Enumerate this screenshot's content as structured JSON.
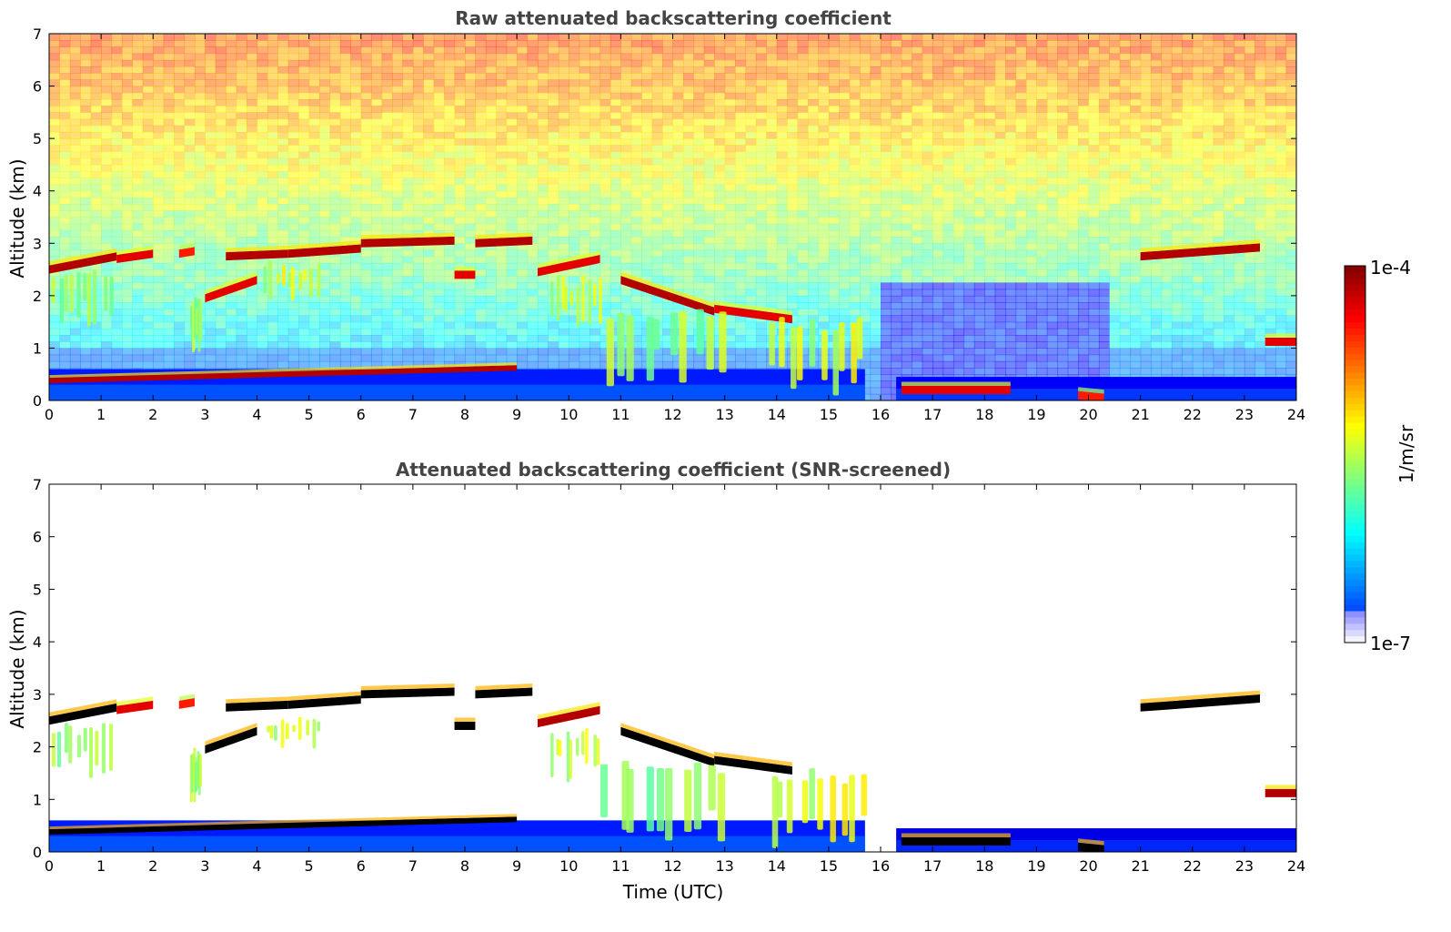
{
  "chart_data": [
    {
      "type": "heatmap",
      "title": "Raw attenuated backscattering coefficient",
      "xlabel": "",
      "ylabel": "Altitude (km)",
      "xlim": [
        0,
        24
      ],
      "ylim": [
        0,
        7
      ],
      "x_ticks": [
        0,
        1,
        2,
        3,
        4,
        5,
        6,
        7,
        8,
        9,
        10,
        11,
        12,
        13,
        14,
        15,
        16,
        17,
        18,
        19,
        20,
        21,
        22,
        23,
        24
      ],
      "y_ticks": [
        0,
        1,
        2,
        3,
        4,
        5,
        6,
        7
      ],
      "noise_background": true,
      "colorscale": "jet",
      "features": [
        {
          "kind": "boundary_layer",
          "x": [
            0,
            15.7
          ],
          "y": [
            0,
            0.6
          ],
          "level": 0.15
        },
        {
          "kind": "boundary_layer",
          "x": [
            16.3,
            24
          ],
          "y": [
            0,
            0.45
          ],
          "level": 0.12
        },
        {
          "kind": "layer_top",
          "x": [
            0,
            9.0
          ],
          "y": [
            0.38,
            0.62
          ],
          "level": 0.95
        },
        {
          "kind": "cloud_layer",
          "x": [
            0,
            1.3
          ],
          "y": [
            2.5,
            2.75
          ],
          "level": 0.95
        },
        {
          "kind": "cloud_layer",
          "x": [
            1.3,
            2.0
          ],
          "y": [
            2.7,
            2.8
          ],
          "level": 0.9
        },
        {
          "kind": "cloud_layer",
          "x": [
            2.5,
            2.8
          ],
          "y": [
            2.8,
            2.85
          ],
          "level": 0.85
        },
        {
          "kind": "cloud_layer",
          "x": [
            3.0,
            4.0
          ],
          "y": [
            1.95,
            2.3
          ],
          "level": 0.9
        },
        {
          "kind": "cloud_layer",
          "x": [
            3.4,
            4.6
          ],
          "y": [
            2.75,
            2.8
          ],
          "level": 0.95
        },
        {
          "kind": "cloud_layer",
          "x": [
            4.6,
            6.0
          ],
          "y": [
            2.8,
            2.9
          ],
          "level": 0.95
        },
        {
          "kind": "cloud_layer",
          "x": [
            6.0,
            7.8
          ],
          "y": [
            3.0,
            3.05
          ],
          "level": 0.95
        },
        {
          "kind": "cloud_layer",
          "x": [
            7.8,
            8.2
          ],
          "y": [
            2.4,
            2.4
          ],
          "level": 0.9
        },
        {
          "kind": "cloud_layer",
          "x": [
            8.2,
            9.3
          ],
          "y": [
            3.0,
            3.05
          ],
          "level": 0.95
        },
        {
          "kind": "cloud_layer",
          "x": [
            9.4,
            10.6
          ],
          "y": [
            2.45,
            2.7
          ],
          "level": 0.9
        },
        {
          "kind": "cloud_layer",
          "x": [
            11.0,
            12.8
          ],
          "y": [
            2.3,
            1.7
          ],
          "level": 0.95
        },
        {
          "kind": "cloud_layer",
          "x": [
            12.8,
            14.3
          ],
          "y": [
            1.75,
            1.55
          ],
          "level": 0.9
        },
        {
          "kind": "cloud_layer",
          "x": [
            16.4,
            18.5
          ],
          "y": [
            0.2,
            0.2
          ],
          "level": 0.9
        },
        {
          "kind": "cloud_layer",
          "x": [
            19.8,
            20.3
          ],
          "y": [
            0.1,
            0.05
          ],
          "level": 0.85
        },
        {
          "kind": "cloud_layer",
          "x": [
            21.0,
            23.3
          ],
          "y": [
            2.75,
            2.92
          ],
          "level": 0.95
        },
        {
          "kind": "cloud_layer",
          "x": [
            23.4,
            24.0
          ],
          "y": [
            1.12,
            1.12
          ],
          "level": 0.9
        },
        {
          "kind": "virga",
          "x": [
            0,
            1.2
          ],
          "y": [
            1.4,
            2.5
          ],
          "level": 0.55
        },
        {
          "kind": "virga",
          "x": [
            2.7,
            2.9
          ],
          "y": [
            0.8,
            2.0
          ],
          "level": 0.55
        },
        {
          "kind": "virga",
          "x": [
            4.1,
            5.2
          ],
          "y": [
            1.9,
            2.7
          ],
          "level": 0.6
        },
        {
          "kind": "virga",
          "x": [
            9.6,
            10.6
          ],
          "y": [
            1.3,
            2.4
          ],
          "level": 0.6
        },
        {
          "kind": "virga",
          "x": [
            10.6,
            13.0
          ],
          "y": [
            0.2,
            1.8
          ],
          "level": 0.55
        },
        {
          "kind": "virga",
          "x": [
            13.8,
            15.7
          ],
          "y": [
            0.05,
            1.6
          ],
          "level": 0.6
        }
      ]
    },
    {
      "type": "heatmap",
      "title": "Attenuated backscattering coefficient (SNR-screened)",
      "xlabel": "Time (UTC)",
      "ylabel": "Altitude (km)",
      "xlim": [
        0,
        24
      ],
      "ylim": [
        0,
        7
      ],
      "x_ticks": [
        0,
        1,
        2,
        3,
        4,
        5,
        6,
        7,
        8,
        9,
        10,
        11,
        12,
        13,
        14,
        15,
        16,
        17,
        18,
        19,
        20,
        21,
        22,
        23,
        24
      ],
      "y_ticks": [
        0,
        1,
        2,
        3,
        4,
        5,
        6,
        7
      ],
      "noise_background": false,
      "colorscale": "jet",
      "saturated_color": "#000000",
      "features": [
        {
          "kind": "boundary_layer",
          "x": [
            0,
            15.7
          ],
          "y": [
            0,
            0.6
          ],
          "level": 0.15
        },
        {
          "kind": "boundary_layer",
          "x": [
            16.3,
            24
          ],
          "y": [
            0,
            0.45
          ],
          "level": 0.1
        },
        {
          "kind": "layer_top",
          "x": [
            0,
            9.0
          ],
          "y": [
            0.38,
            0.62
          ],
          "level": 1.0
        },
        {
          "kind": "cloud_layer",
          "x": [
            0,
            1.3
          ],
          "y": [
            2.5,
            2.75
          ],
          "level": 1.0
        },
        {
          "kind": "cloud_layer",
          "x": [
            1.3,
            2.0
          ],
          "y": [
            2.7,
            2.8
          ],
          "level": 0.9
        },
        {
          "kind": "cloud_layer",
          "x": [
            2.5,
            2.8
          ],
          "y": [
            2.8,
            2.85
          ],
          "level": 0.85
        },
        {
          "kind": "cloud_layer",
          "x": [
            3.0,
            4.0
          ],
          "y": [
            1.95,
            2.3
          ],
          "level": 1.0
        },
        {
          "kind": "cloud_layer",
          "x": [
            3.4,
            4.6
          ],
          "y": [
            2.75,
            2.8
          ],
          "level": 1.0
        },
        {
          "kind": "cloud_layer",
          "x": [
            4.6,
            6.0
          ],
          "y": [
            2.8,
            2.9
          ],
          "level": 1.0
        },
        {
          "kind": "cloud_layer",
          "x": [
            6.0,
            7.8
          ],
          "y": [
            3.0,
            3.05
          ],
          "level": 1.0
        },
        {
          "kind": "cloud_layer",
          "x": [
            7.8,
            8.2
          ],
          "y": [
            2.4,
            2.4
          ],
          "level": 1.0
        },
        {
          "kind": "cloud_layer",
          "x": [
            8.2,
            9.3
          ],
          "y": [
            3.0,
            3.05
          ],
          "level": 1.0
        },
        {
          "kind": "cloud_layer",
          "x": [
            9.4,
            10.6
          ],
          "y": [
            2.45,
            2.7
          ],
          "level": 0.95
        },
        {
          "kind": "cloud_layer",
          "x": [
            11.0,
            12.8
          ],
          "y": [
            2.3,
            1.7
          ],
          "level": 1.0
        },
        {
          "kind": "cloud_layer",
          "x": [
            12.8,
            14.3
          ],
          "y": [
            1.75,
            1.55
          ],
          "level": 1.0
        },
        {
          "kind": "cloud_layer",
          "x": [
            16.4,
            18.5
          ],
          "y": [
            0.2,
            0.2
          ],
          "level": 1.0
        },
        {
          "kind": "cloud_layer",
          "x": [
            19.8,
            20.3
          ],
          "y": [
            0.1,
            0.05
          ],
          "level": 1.0
        },
        {
          "kind": "cloud_layer",
          "x": [
            21.0,
            23.3
          ],
          "y": [
            2.75,
            2.92
          ],
          "level": 1.0
        },
        {
          "kind": "cloud_layer",
          "x": [
            23.4,
            24.0
          ],
          "y": [
            1.12,
            1.12
          ],
          "level": 0.95
        },
        {
          "kind": "virga",
          "x": [
            0,
            1.2
          ],
          "y": [
            1.4,
            2.5
          ],
          "level": 0.55
        },
        {
          "kind": "virga",
          "x": [
            2.7,
            2.9
          ],
          "y": [
            0.8,
            2.0
          ],
          "level": 0.55
        },
        {
          "kind": "virga",
          "x": [
            4.1,
            5.2
          ],
          "y": [
            1.9,
            2.7
          ],
          "level": 0.6
        },
        {
          "kind": "virga",
          "x": [
            9.6,
            10.6
          ],
          "y": [
            1.3,
            2.4
          ],
          "level": 0.6
        },
        {
          "kind": "virga",
          "x": [
            10.6,
            13.0
          ],
          "y": [
            0.2,
            1.8
          ],
          "level": 0.55
        },
        {
          "kind": "virga",
          "x": [
            13.8,
            15.7
          ],
          "y": [
            0.05,
            1.6
          ],
          "level": 0.6
        }
      ]
    }
  ],
  "colorbar": {
    "label": "1/m/sr",
    "max_label": "1e-4",
    "min_label": "1e-7",
    "colorscale": "jet"
  }
}
